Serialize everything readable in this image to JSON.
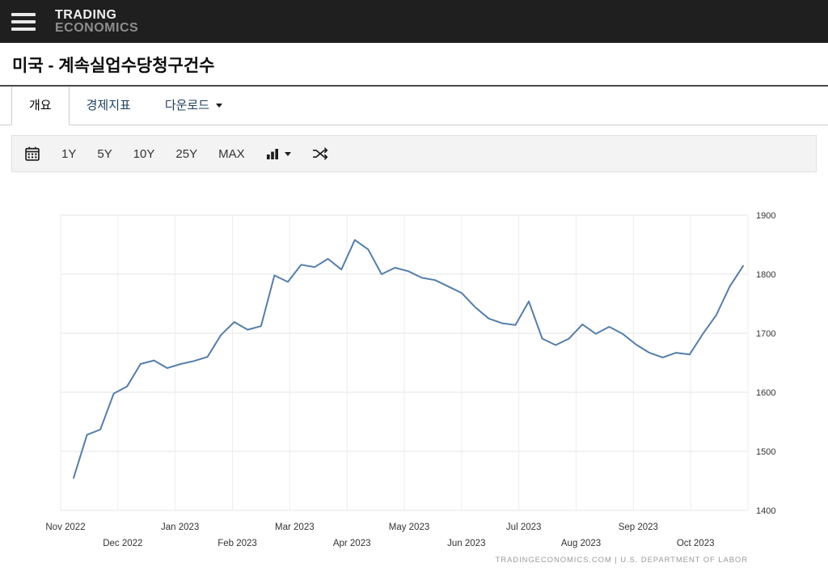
{
  "header": {
    "brand_top": "TRADING",
    "brand_bottom": "ECONOMICS"
  },
  "page": {
    "title": "미국 - 계속실업수당청구건수"
  },
  "tabs": [
    {
      "label": "개요",
      "active": true
    },
    {
      "label": "경제지표",
      "active": false
    },
    {
      "label": "다운로드",
      "active": false,
      "has_caret": true
    }
  ],
  "toolbar": {
    "ranges": [
      "1Y",
      "5Y",
      "10Y",
      "25Y",
      "MAX"
    ],
    "icons": [
      "calendar-icon",
      "bar-chart-type-icon",
      "compare-shuffle-icon"
    ]
  },
  "chart_data": {
    "type": "line",
    "title": "미국 - 계속실업수당청구건수",
    "x_labels": [
      "Nov 2022",
      "Dec 2022",
      "Jan 2023",
      "Feb 2023",
      "Mar 2023",
      "Apr 2023",
      "May 2023",
      "Jun 2023",
      "Jul 2023",
      "Aug 2023",
      "Sep 2023",
      "Oct 2023"
    ],
    "y_ticks": [
      1400,
      1500,
      1600,
      1700,
      1800,
      1900
    ],
    "ylim": [
      1400,
      1900
    ],
    "grid": true,
    "legend": "none",
    "line_color": "#557ea8",
    "series": [
      {
        "name": "계속실업수당청구건수",
        "values": [
          1455,
          1528,
          1537,
          1598,
          1610,
          1648,
          1654,
          1641,
          1648,
          1653,
          1660,
          1697,
          1719,
          1706,
          1712,
          1798,
          1787,
          1816,
          1812,
          1826,
          1808,
          1858,
          1842,
          1800,
          1811,
          1805,
          1794,
          1790,
          1779,
          1768,
          1744,
          1725,
          1717,
          1714,
          1754,
          1691,
          1680,
          1691,
          1715,
          1699,
          1711,
          1699,
          1681,
          1667,
          1659,
          1667,
          1664,
          1699,
          1731,
          1779,
          1814
        ]
      }
    ]
  },
  "footer": {
    "attribution": "TRADINGECONOMICS.COM | U.S. DEPARTMENT OF LABOR"
  }
}
